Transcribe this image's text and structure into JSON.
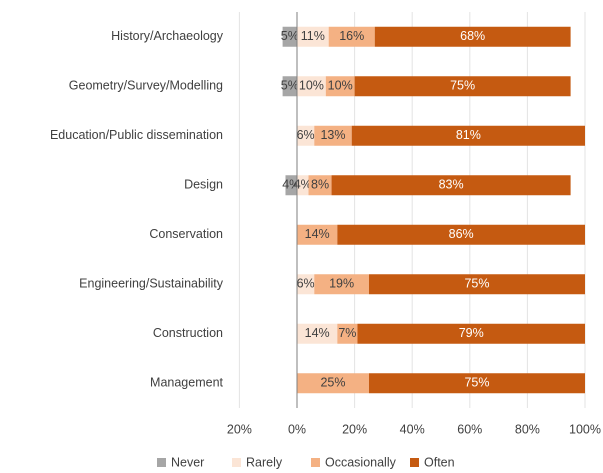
{
  "chart_data": {
    "type": "diverging_bar",
    "categories": [
      "History/Archaeology",
      "Geometry/Survey/Modelling",
      "Education/Public dissemination",
      "Design",
      "Conservation",
      "Engineering/Sustainability",
      "Construction",
      "Management"
    ],
    "series": [
      {
        "name": "Never",
        "color": "#a6a6a6",
        "values": [
          -5,
          -5,
          null,
          -4,
          null,
          null,
          null,
          null
        ],
        "value_labels": [
          "5%",
          "5%",
          null,
          "4%",
          null,
          null,
          null,
          null
        ]
      },
      {
        "name": "Rarely",
        "color": "#fbe5d6",
        "values": [
          11,
          10,
          6,
          4,
          null,
          6,
          14,
          null
        ],
        "value_labels": [
          "11%",
          "10%",
          "6%",
          "4%",
          null,
          "6%",
          "14%",
          null
        ]
      },
      {
        "name": "Occasionally",
        "color": "#f4b183",
        "values": [
          16,
          10,
          13,
          8,
          14,
          19,
          7,
          25
        ],
        "value_labels": [
          "16%",
          "10%",
          "13%",
          "8%",
          "14%",
          "19%",
          "7%",
          "25%"
        ]
      },
      {
        "name": "Often",
        "color": "#c55a11",
        "values": [
          68,
          75,
          81,
          83,
          86,
          75,
          79,
          75
        ],
        "value_labels": [
          "68%",
          "75%",
          "81%",
          "83%",
          "86%",
          "75%",
          "79%",
          "75%"
        ]
      }
    ],
    "xlim": [
      -20,
      100
    ],
    "xticks": [
      {
        "value": -20,
        "label": "20%"
      },
      {
        "value": 0,
        "label": "0%"
      },
      {
        "value": 20,
        "label": "20%"
      },
      {
        "value": 40,
        "label": "40%"
      },
      {
        "value": 60,
        "label": "60%"
      },
      {
        "value": 80,
        "label": "80%"
      },
      {
        "value": 100,
        "label": "100%"
      }
    ],
    "grid": true,
    "legend": "bottom"
  }
}
